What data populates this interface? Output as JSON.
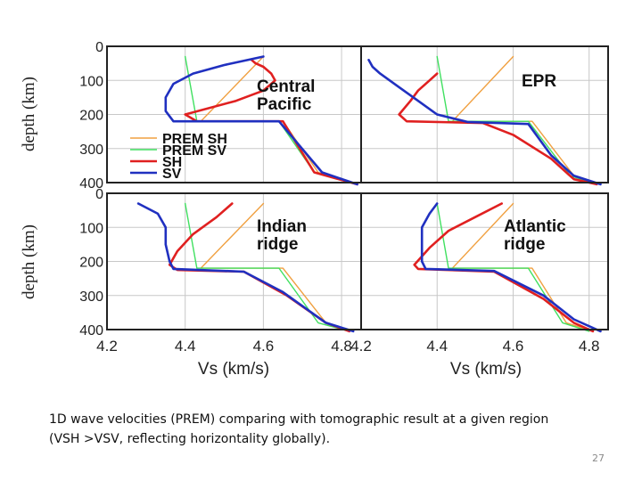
{
  "chart_data": {
    "type": "line",
    "ylabel": "depth (km)",
    "xlabel": "Vs (km/s)",
    "xlim": [
      4.2,
      4.85
    ],
    "ylim": [
      0,
      400
    ],
    "y_ticks": [
      "0",
      "100",
      "200",
      "300",
      "400"
    ],
    "x_ticks": [
      "4.2",
      "4.4",
      "4.6",
      "4.8"
    ],
    "legend": {
      "placement": "bottom-left of top-left panel",
      "entries": [
        "PREM SH",
        "PREM SV",
        "SH",
        "SV"
      ]
    },
    "colors": {
      "PREM SH": "#f0a040",
      "PREM SV": "#40e060",
      "SH": "#e02020",
      "SV": "#2030c0"
    },
    "panels": [
      {
        "title": "Central Pacific",
        "title_lines": [
          "Central",
          "Pacific"
        ],
        "series": [
          {
            "name": "PREM SH",
            "points": [
              [
                4.6,
                30
              ],
              [
                4.44,
                220
              ],
              [
                4.65,
                220
              ],
              [
                4.74,
                370
              ],
              [
                4.84,
                405
              ]
            ]
          },
          {
            "name": "PREM SV",
            "points": [
              [
                4.4,
                30
              ],
              [
                4.43,
                220
              ],
              [
                4.64,
                220
              ],
              [
                4.73,
                370
              ],
              [
                4.84,
                405
              ]
            ]
          },
          {
            "name": "SH",
            "points": [
              [
                4.57,
                40
              ],
              [
                4.58,
                50
              ],
              [
                4.6,
                60
              ],
              [
                4.62,
                80
              ],
              [
                4.63,
                100
              ],
              [
                4.6,
                130
              ],
              [
                4.53,
                160
              ],
              [
                4.4,
                200
              ],
              [
                4.43,
                220
              ],
              [
                4.65,
                220
              ],
              [
                4.73,
                370
              ],
              [
                4.84,
                405
              ]
            ]
          },
          {
            "name": "SV",
            "points": [
              [
                4.6,
                30
              ],
              [
                4.5,
                55
              ],
              [
                4.42,
                80
              ],
              [
                4.37,
                110
              ],
              [
                4.35,
                150
              ],
              [
                4.35,
                190
              ],
              [
                4.37,
                220
              ],
              [
                4.64,
                220
              ],
              [
                4.75,
                370
              ],
              [
                4.84,
                405
              ]
            ]
          }
        ]
      },
      {
        "title": "EPR",
        "title_lines": [
          "EPR"
        ],
        "series": [
          {
            "name": "PREM SH",
            "points": [
              [
                4.6,
                30
              ],
              [
                4.44,
                220
              ],
              [
                4.65,
                220
              ],
              [
                4.76,
                380
              ],
              [
                4.82,
                405
              ]
            ]
          },
          {
            "name": "PREM SV",
            "points": [
              [
                4.4,
                30
              ],
              [
                4.43,
                220
              ],
              [
                4.64,
                220
              ],
              [
                4.75,
                380
              ],
              [
                4.82,
                405
              ]
            ]
          },
          {
            "name": "SH",
            "points": [
              [
                4.4,
                80
              ],
              [
                4.38,
                100
              ],
              [
                4.35,
                130
              ],
              [
                4.33,
                160
              ],
              [
                4.3,
                200
              ],
              [
                4.32,
                220
              ],
              [
                4.52,
                225
              ],
              [
                4.6,
                260
              ],
              [
                4.7,
                330
              ],
              [
                4.76,
                390
              ],
              [
                4.82,
                405
              ]
            ]
          },
          {
            "name": "SV",
            "points": [
              [
                4.22,
                40
              ],
              [
                4.23,
                60
              ],
              [
                4.25,
                80
              ],
              [
                4.3,
                120
              ],
              [
                4.35,
                160
              ],
              [
                4.4,
                200
              ],
              [
                4.48,
                222
              ],
              [
                4.64,
                228
              ],
              [
                4.7,
                320
              ],
              [
                4.76,
                380
              ],
              [
                4.83,
                405
              ]
            ]
          }
        ]
      },
      {
        "title": "Indian ridge",
        "title_lines": [
          "Indian",
          "ridge"
        ],
        "series": [
          {
            "name": "PREM SH",
            "points": [
              [
                4.6,
                30
              ],
              [
                4.44,
                220
              ],
              [
                4.65,
                220
              ],
              [
                4.76,
                380
              ],
              [
                4.82,
                405
              ]
            ]
          },
          {
            "name": "PREM SV",
            "points": [
              [
                4.4,
                30
              ],
              [
                4.43,
                220
              ],
              [
                4.64,
                220
              ],
              [
                4.74,
                380
              ],
              [
                4.82,
                405
              ]
            ]
          },
          {
            "name": "SH",
            "points": [
              [
                4.52,
                30
              ],
              [
                4.48,
                70
              ],
              [
                4.42,
                120
              ],
              [
                4.38,
                170
              ],
              [
                4.36,
                210
              ],
              [
                4.38,
                225
              ],
              [
                4.55,
                230
              ],
              [
                4.66,
                300
              ],
              [
                4.76,
                380
              ],
              [
                4.82,
                405
              ]
            ]
          },
          {
            "name": "SV",
            "points": [
              [
                4.28,
                30
              ],
              [
                4.33,
                60
              ],
              [
                4.35,
                100
              ],
              [
                4.35,
                150
              ],
              [
                4.36,
                200
              ],
              [
                4.37,
                222
              ],
              [
                4.55,
                230
              ],
              [
                4.65,
                290
              ],
              [
                4.76,
                380
              ],
              [
                4.83,
                405
              ]
            ]
          }
        ]
      },
      {
        "title": "Atlantic ridge",
        "title_lines": [
          "Atlantic",
          "ridge"
        ],
        "series": [
          {
            "name": "PREM SH",
            "points": [
              [
                4.6,
                30
              ],
              [
                4.44,
                220
              ],
              [
                4.65,
                220
              ],
              [
                4.74,
                380
              ],
              [
                4.81,
                405
              ]
            ]
          },
          {
            "name": "PREM SV",
            "points": [
              [
                4.4,
                30
              ],
              [
                4.43,
                220
              ],
              [
                4.64,
                220
              ],
              [
                4.73,
                380
              ],
              [
                4.8,
                405
              ]
            ]
          },
          {
            "name": "SH",
            "points": [
              [
                4.57,
                30
              ],
              [
                4.5,
                70
              ],
              [
                4.43,
                110
              ],
              [
                4.38,
                160
              ],
              [
                4.34,
                210
              ],
              [
                4.35,
                222
              ],
              [
                4.55,
                230
              ],
              [
                4.68,
                310
              ],
              [
                4.76,
                380
              ],
              [
                4.81,
                405
              ]
            ]
          },
          {
            "name": "SV",
            "points": [
              [
                4.4,
                30
              ],
              [
                4.38,
                60
              ],
              [
                4.36,
                100
              ],
              [
                4.36,
                150
              ],
              [
                4.36,
                200
              ],
              [
                4.37,
                222
              ],
              [
                4.55,
                228
              ],
              [
                4.68,
                300
              ],
              [
                4.76,
                370
              ],
              [
                4.83,
                405
              ]
            ]
          }
        ]
      }
    ]
  },
  "caption": {
    "line1": "1D wave velocities (PREM) comparing with tomographic result at a given region",
    "line2": "(VSH >VSV, reflecting horizontality globally)."
  },
  "slide_number": "27"
}
